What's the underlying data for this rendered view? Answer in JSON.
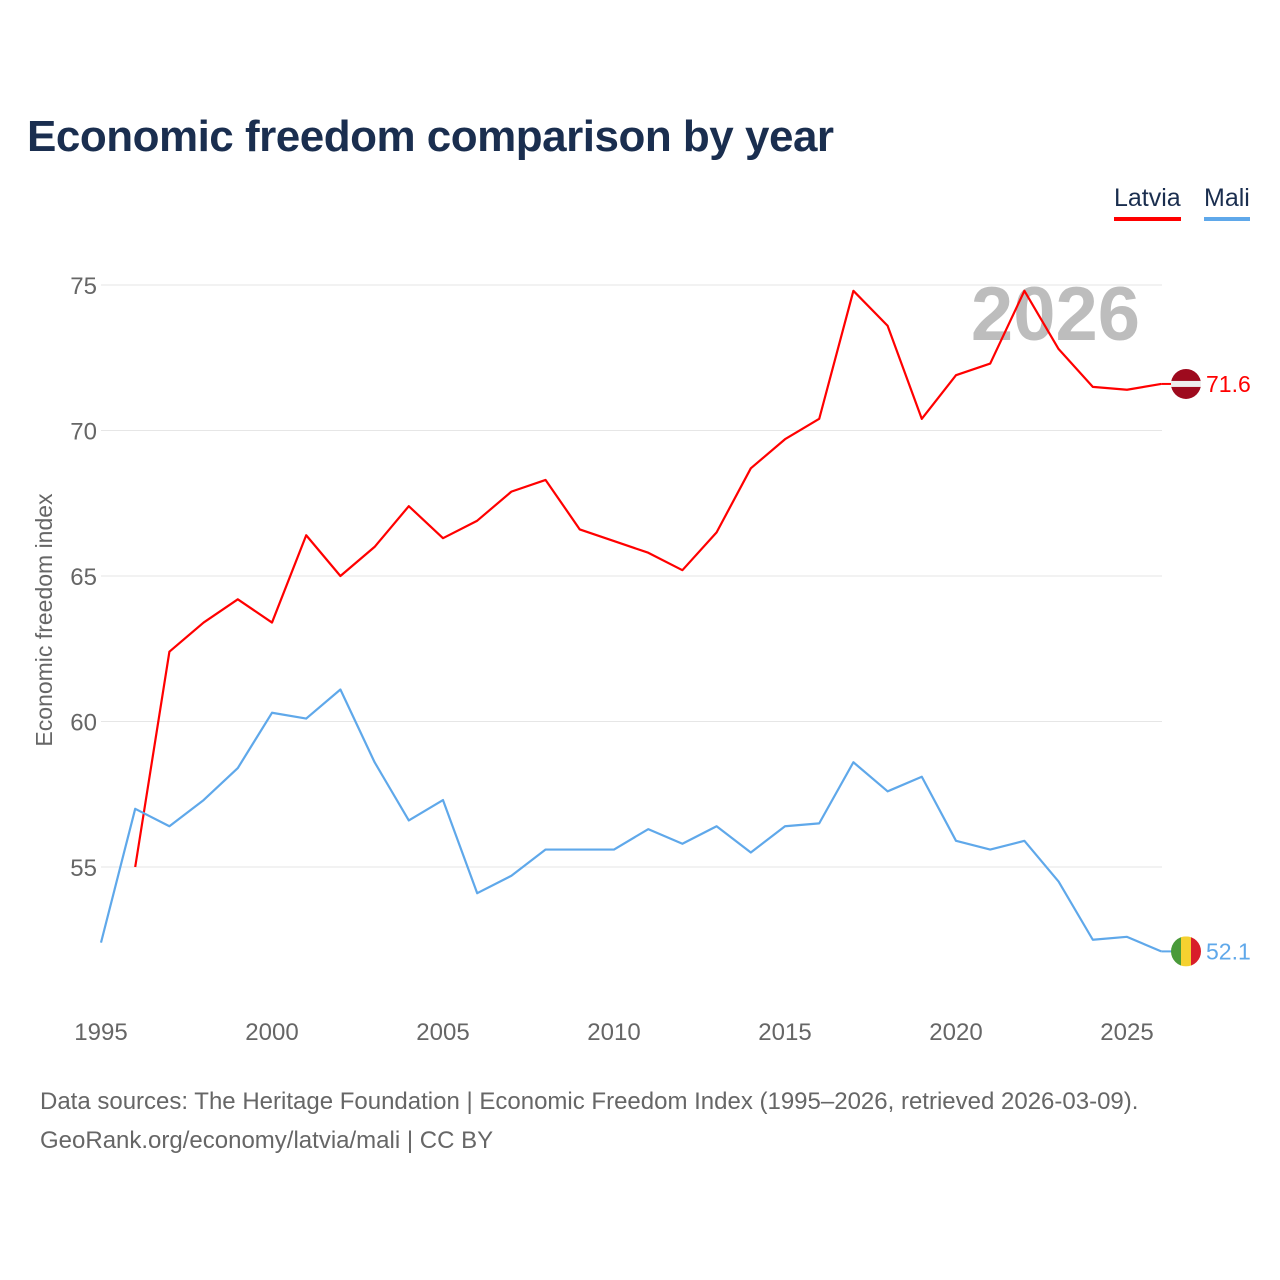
{
  "chart_data": {
    "type": "line",
    "title": "Economic freedom comparison by year",
    "xlabel": "",
    "ylabel": "Economic freedom index",
    "xlim": [
      1995,
      2026
    ],
    "ylim": [
      51,
      76.5
    ],
    "x_ticks": [
      1995,
      2000,
      2005,
      2010,
      2015,
      2020,
      2025
    ],
    "y_ticks": [
      55,
      60,
      65,
      70,
      75
    ],
    "grid": true,
    "legend_position": "top-right",
    "year_watermark": "2026",
    "series": [
      {
        "name": "Latvia",
        "color": "#ff0000",
        "end_label": "71.6",
        "x": [
          1996,
          1997,
          1998,
          1999,
          2000,
          2001,
          2002,
          2003,
          2004,
          2005,
          2006,
          2007,
          2008,
          2009,
          2010,
          2011,
          2012,
          2013,
          2014,
          2015,
          2016,
          2017,
          2018,
          2019,
          2020,
          2021,
          2022,
          2023,
          2024,
          2025,
          2026
        ],
        "values": [
          55.0,
          62.4,
          63.4,
          64.2,
          63.4,
          66.4,
          65.0,
          66.0,
          67.4,
          66.3,
          66.9,
          67.9,
          68.3,
          66.6,
          66.2,
          65.8,
          65.2,
          66.5,
          68.7,
          69.7,
          70.4,
          74.8,
          73.6,
          70.4,
          71.9,
          72.3,
          74.8,
          72.8,
          71.5,
          71.4,
          71.6
        ]
      },
      {
        "name": "Mali",
        "color": "#5fa8ea",
        "end_label": "52.1",
        "x": [
          1995,
          1996,
          1997,
          1998,
          1999,
          2000,
          2001,
          2002,
          2003,
          2004,
          2005,
          2006,
          2007,
          2008,
          2009,
          2010,
          2011,
          2012,
          2013,
          2014,
          2015,
          2016,
          2017,
          2018,
          2019,
          2020,
          2021,
          2022,
          2023,
          2024,
          2025,
          2026
        ],
        "values": [
          52.4,
          57.0,
          56.4,
          57.3,
          58.4,
          60.3,
          60.1,
          61.1,
          58.6,
          56.6,
          57.3,
          54.1,
          54.7,
          55.6,
          55.6,
          55.6,
          56.3,
          55.8,
          56.4,
          55.5,
          56.4,
          56.5,
          58.6,
          57.6,
          58.1,
          55.9,
          55.6,
          55.9,
          54.5,
          52.5,
          52.6,
          52.1
        ]
      }
    ]
  },
  "footer": {
    "line1": "Data sources: The Heritage Foundation | Economic Freedom Index (1995–2026, retrieved 2026-03-09).",
    "line2": "GeoRank.org/economy/latvia/mali | CC BY"
  }
}
